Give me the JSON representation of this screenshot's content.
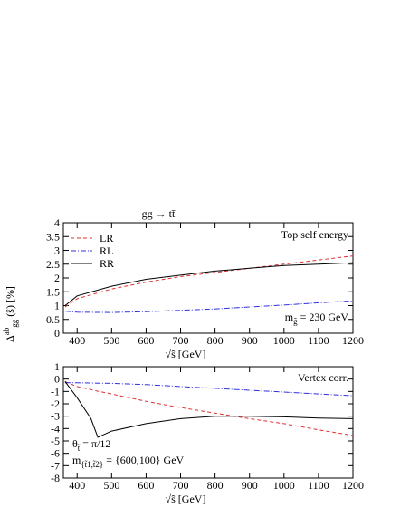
{
  "chart_data": [
    {
      "type": "line",
      "title": "gg → tt̄",
      "ylabel": [
        {
          "text": "Δ"
        },
        {
          "sup": "ab"
        },
        {
          "sub": "gg"
        },
        {
          "text": " (ŝ)  [%]"
        }
      ],
      "xlabel": "√ŝ  [GeV]",
      "legend": "upper left",
      "x": [
        365,
        400,
        500,
        600,
        700,
        800,
        900,
        1000,
        1100,
        1200
      ],
      "xlim": [
        360,
        1200
      ],
      "xticks": [
        400,
        500,
        600,
        700,
        800,
        900,
        1000,
        1100,
        1200
      ],
      "ylim": [
        0,
        4
      ],
      "yticks": [
        0,
        0.5,
        1,
        1.5,
        2,
        2.5,
        3,
        3.5,
        4
      ],
      "annotations": [
        [
          {
            "text": "Top self energy"
          }
        ],
        [
          {
            "text": "m"
          },
          {
            "sub": "g̃"
          },
          {
            "text": " = 230 GeV"
          }
        ]
      ],
      "series": [
        {
          "name": "LR",
          "color": "#e03030",
          "style": "dashed",
          "values": [
            0.95,
            1.25,
            1.6,
            1.85,
            2.05,
            2.2,
            2.35,
            2.5,
            2.65,
            2.8
          ]
        },
        {
          "name": "RL",
          "color": "#3030e0",
          "style": "dashdot",
          "values": [
            0.8,
            0.76,
            0.75,
            0.78,
            0.83,
            0.88,
            0.95,
            1.02,
            1.1,
            1.17
          ]
        },
        {
          "name": "RR",
          "color": "#000000",
          "style": "solid",
          "values": [
            1.0,
            1.35,
            1.7,
            1.95,
            2.1,
            2.25,
            2.35,
            2.45,
            2.5,
            2.55
          ]
        }
      ]
    },
    {
      "type": "line",
      "xlabel": "√ŝ  [GeV]",
      "x": [
        365,
        400,
        440,
        460,
        500,
        600,
        700,
        800,
        900,
        1000,
        1100,
        1200
      ],
      "xlim": [
        360,
        1200
      ],
      "xticks": [
        400,
        500,
        600,
        700,
        800,
        900,
        1000,
        1100,
        1200
      ],
      "ylim": [
        -8,
        1
      ],
      "yticks": [
        -8,
        -7,
        -6,
        -5,
        -4,
        -3,
        -2,
        -1,
        0,
        1
      ],
      "annotations": [
        [
          {
            "text": "Vertex corr."
          }
        ],
        [
          {
            "text": "θ"
          },
          {
            "sub": "t̃"
          },
          {
            "text": " = π/12"
          }
        ],
        [
          {
            "text": "m"
          },
          {
            "sub": "{t̃1,t̃2}"
          },
          {
            "text": " = {600,100} GeV"
          }
        ]
      ],
      "series": [
        {
          "color": "#e03030",
          "style": "dashed",
          "values": [
            -0.2,
            -0.6,
            -0.85,
            -0.98,
            -1.2,
            -1.8,
            -2.3,
            -2.75,
            -3.2,
            -3.6,
            -4.1,
            -4.55
          ]
        },
        {
          "color": "#3030e0",
          "style": "dashdot",
          "values": [
            -0.3,
            -0.3,
            -0.32,
            -0.33,
            -0.35,
            -0.45,
            -0.6,
            -0.75,
            -0.9,
            -1.05,
            -1.2,
            -1.35
          ]
        },
        {
          "color": "#000000",
          "style": "solid",
          "values": [
            -0.2,
            -1.5,
            -3.2,
            -4.7,
            -4.2,
            -3.6,
            -3.2,
            -3.0,
            -3.0,
            -3.05,
            -3.15,
            -3.2
          ]
        }
      ]
    }
  ]
}
